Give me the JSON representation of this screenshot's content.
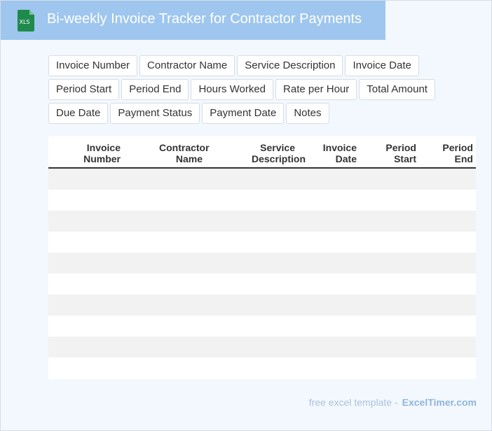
{
  "header": {
    "icon_label": "XLS",
    "title": "Bi-weekly Invoice Tracker for Contractor Payments"
  },
  "fields": [
    "Invoice Number",
    "Contractor Name",
    "Service Description",
    "Invoice Date",
    "Period Start",
    "Period End",
    "Hours Worked",
    "Rate per Hour",
    "Total Amount",
    "Due Date",
    "Payment Status",
    "Payment Date",
    "Notes"
  ],
  "table": {
    "columns": [
      "Invoice Number",
      "Contractor Name",
      "Service Description",
      "Invoice Date",
      "Period Start",
      "Period End"
    ]
  },
  "footer": {
    "text": "free excel template -",
    "site": "ExcelTimer.com"
  }
}
